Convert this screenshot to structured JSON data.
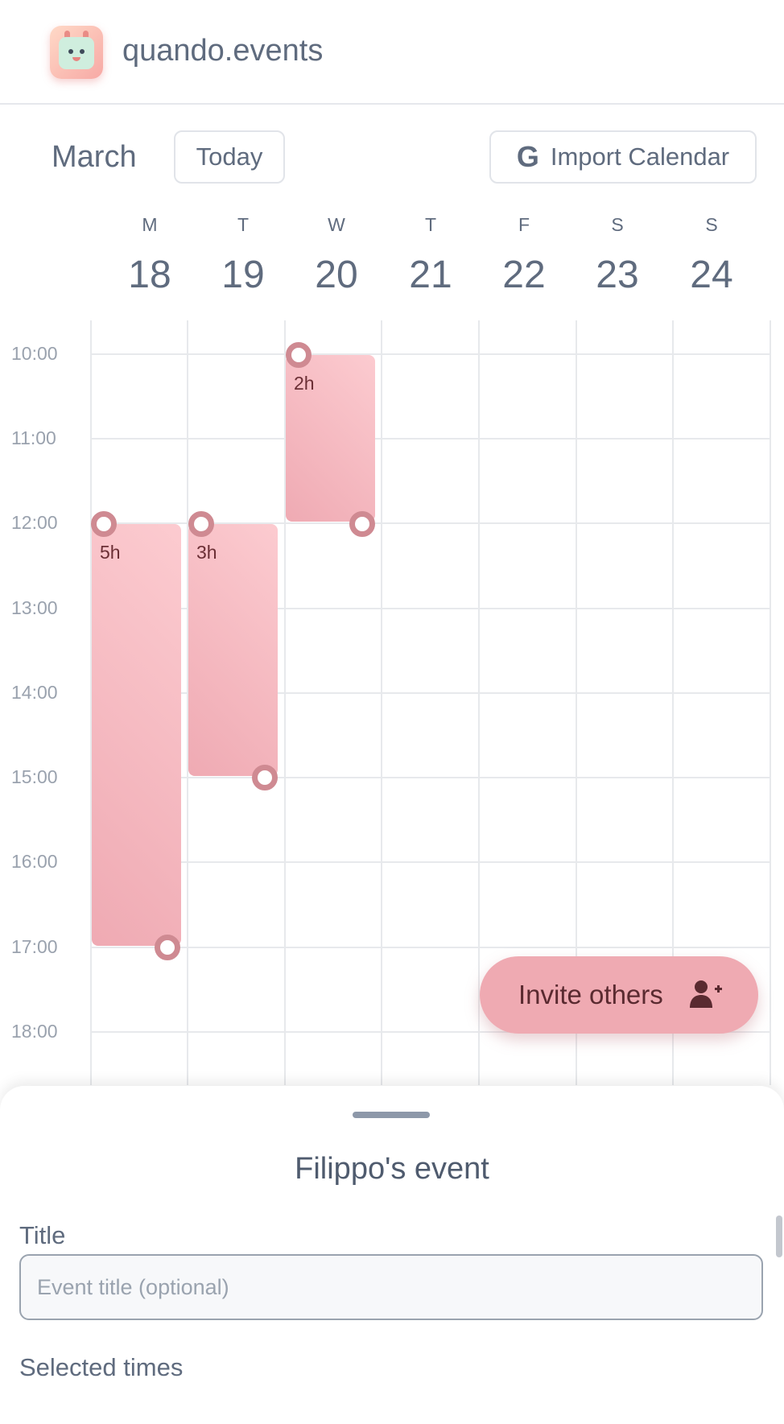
{
  "header": {
    "brand": "quando.events",
    "logo_icon": "calendar-mascot-icon"
  },
  "toolbar": {
    "month": "March",
    "today_label": "Today",
    "import_label": "Import Calendar",
    "import_icon": "google-g-icon"
  },
  "week": {
    "days": [
      {
        "dow": "M",
        "num": "18"
      },
      {
        "dow": "T",
        "num": "19"
      },
      {
        "dow": "W",
        "num": "20"
      },
      {
        "dow": "T",
        "num": "21"
      },
      {
        "dow": "F",
        "num": "22"
      },
      {
        "dow": "S",
        "num": "23"
      },
      {
        "dow": "S",
        "num": "24"
      }
    ]
  },
  "times": [
    "10:00",
    "11:00",
    "12:00",
    "13:00",
    "14:00",
    "15:00",
    "16:00",
    "17:00",
    "18:00"
  ],
  "selections": [
    {
      "day_index": 0,
      "start": "12:00",
      "end": "17:00",
      "duration": "5h"
    },
    {
      "day_index": 1,
      "start": "12:00",
      "end": "15:00",
      "duration": "3h"
    },
    {
      "day_index": 2,
      "start": "10:00",
      "end": "12:00",
      "duration": "2h"
    }
  ],
  "colors": {
    "selection": "#f5bcc3",
    "handle": "#cf8a92",
    "fab": "#efaab2",
    "text": "#5f6b7e"
  },
  "fab": {
    "label": "Invite others",
    "icon": "add-user-icon"
  },
  "sheet": {
    "title": "Filippo's event",
    "title_label": "Title",
    "title_placeholder": "Event title (optional)",
    "title_value": "",
    "times_label": "Selected times"
  }
}
